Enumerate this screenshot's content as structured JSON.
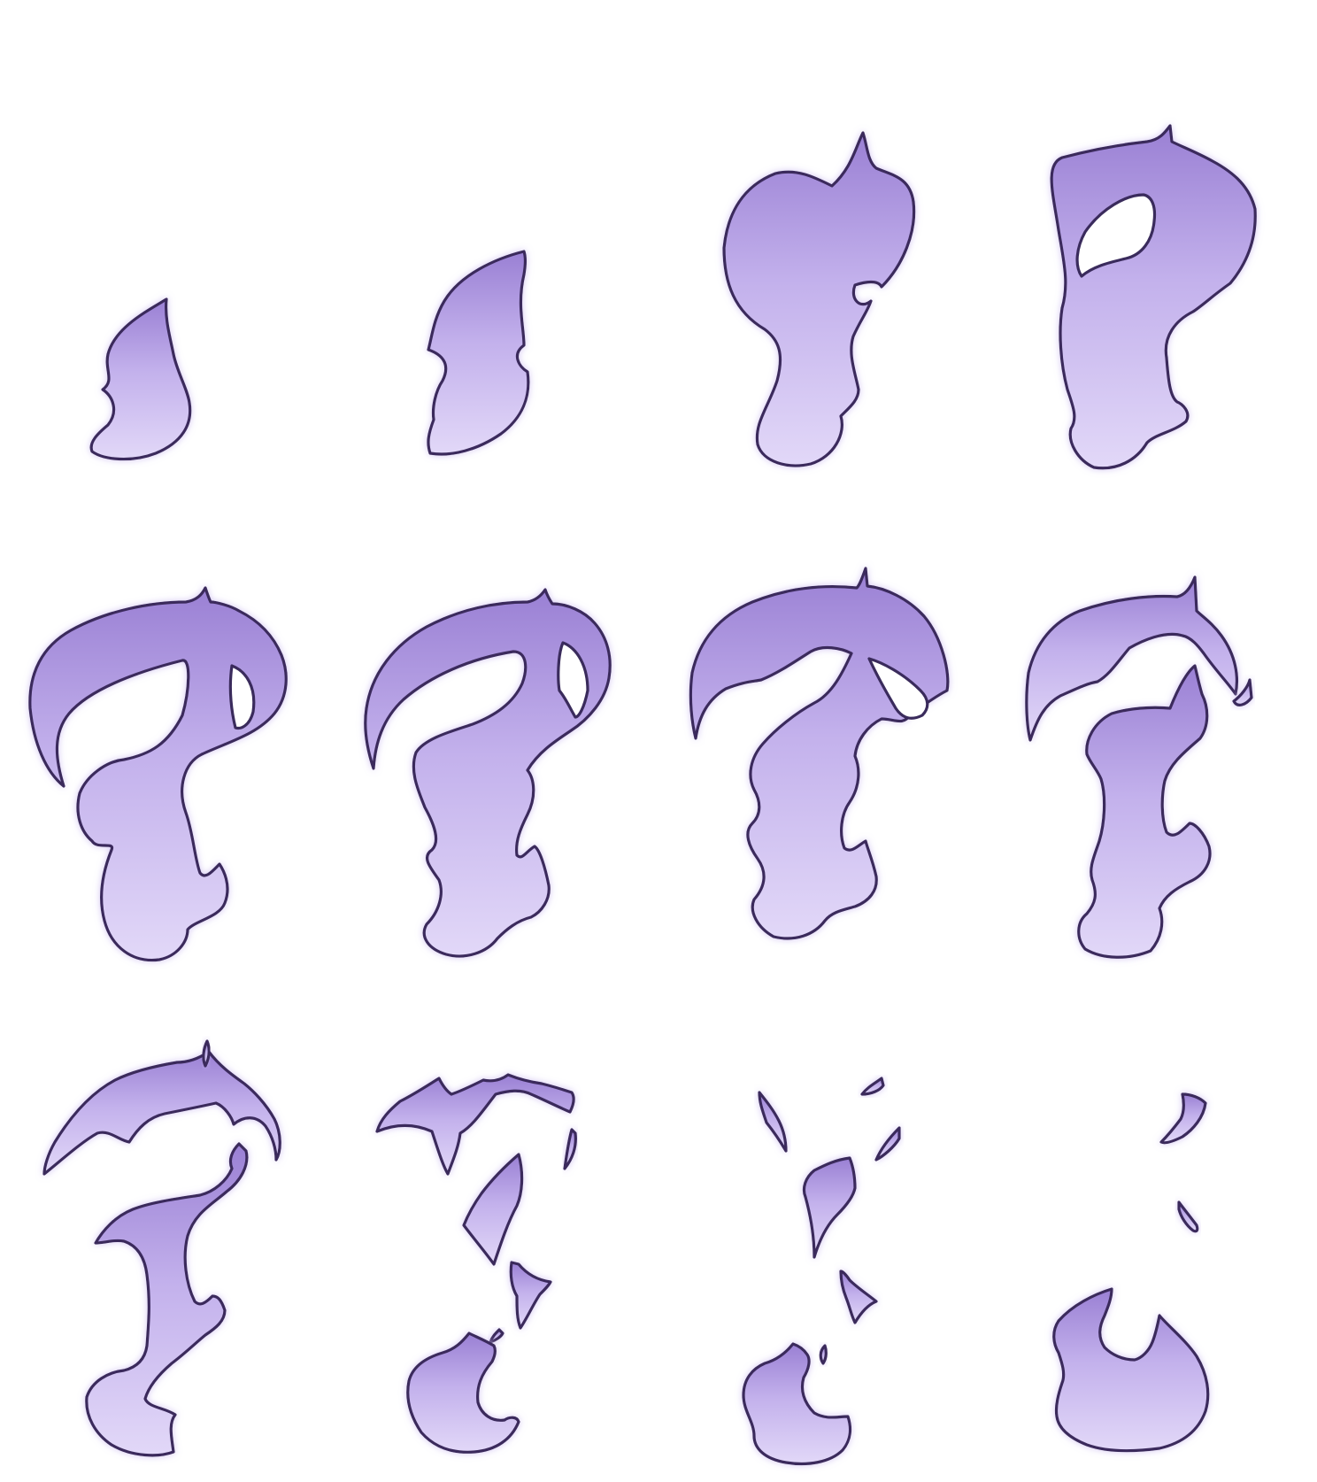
{
  "sprite_sheet": {
    "name": "purple-flame-dissolve",
    "rows": 3,
    "columns": 4,
    "frame_count": 12,
    "colors": {
      "background": "#ffffff",
      "outline": "#3a2b5c",
      "fill_dark": "#9a80d4",
      "fill_light": "#e2d8f8",
      "glow": "#c9b8f0"
    },
    "frames": [
      {
        "index": 1,
        "phase": "ignite"
      },
      {
        "index": 2,
        "phase": "grow"
      },
      {
        "index": 3,
        "phase": "full"
      },
      {
        "index": 4,
        "phase": "curl"
      },
      {
        "index": 5,
        "phase": "arc"
      },
      {
        "index": 6,
        "phase": "arc-thin"
      },
      {
        "index": 7,
        "phase": "arc-split"
      },
      {
        "index": 8,
        "phase": "break"
      },
      {
        "index": 9,
        "phase": "break-more"
      },
      {
        "index": 10,
        "phase": "scatter"
      },
      {
        "index": 11,
        "phase": "fragments"
      },
      {
        "index": 12,
        "phase": "ember"
      }
    ]
  }
}
